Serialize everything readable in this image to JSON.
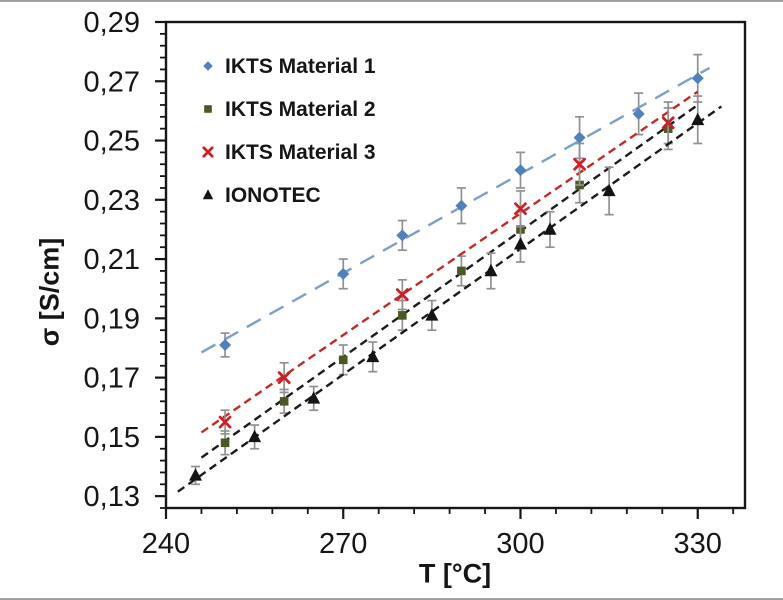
{
  "figure": {
    "background": "#ffffff",
    "frame_color": "#161616",
    "hairline_color": "#a0a0a0"
  },
  "chart_data": {
    "type": "scatter",
    "title": "",
    "xlabel": "T [°C]",
    "ylabel": "σ [S/cm]",
    "xlim": [
      240,
      338
    ],
    "ylim": [
      0.126,
      0.29
    ],
    "grid": false,
    "legend_position": "top-left-inside",
    "x_major_ticks": [
      240,
      270,
      300,
      330
    ],
    "x_major_tick_labels": [
      "240",
      "270",
      "300",
      "330"
    ],
    "x_minor_step": 6,
    "y_major_ticks": [
      0.13,
      0.15,
      0.17,
      0.19,
      0.21,
      0.23,
      0.25,
      0.27,
      0.29
    ],
    "y_major_tick_labels": [
      "0,13",
      "0,15",
      "0,17",
      "0,19",
      "0,21",
      "0,23",
      "0,25",
      "0,27",
      "0,29"
    ],
    "y_minor_step": 0.004,
    "decimal_separator": ",",
    "errorbar_color": "#919191",
    "series": [
      {
        "name": "IKTS Material 1",
        "marker": "diamond",
        "marker_color": "#4f81bd",
        "line_color": "#7da0c9",
        "line_dash": "long",
        "x": [
          250,
          270,
          280,
          290,
          300,
          310,
          320,
          330
        ],
        "y": [
          0.181,
          0.205,
          0.218,
          0.228,
          0.24,
          0.251,
          0.259,
          0.271
        ],
        "yerr": [
          0.004,
          0.005,
          0.005,
          0.006,
          0.006,
          0.007,
          0.007,
          0.008
        ],
        "trend": {
          "x1": 246,
          "y1": 0.1785,
          "x2": 332,
          "y2": 0.2745
        }
      },
      {
        "name": "IKTS Material 2",
        "marker": "square",
        "marker_color": "#4a5a22",
        "line_color": "#1c1c1c",
        "line_dash": "short",
        "x": [
          250,
          260,
          270,
          280,
          290,
          300,
          310,
          325
        ],
        "y": [
          0.148,
          0.162,
          0.176,
          0.191,
          0.206,
          0.22,
          0.235,
          0.254
        ],
        "yerr": [
          0.004,
          0.004,
          0.005,
          0.005,
          0.005,
          0.006,
          0.006,
          0.007
        ],
        "trend": {
          "x1": 246,
          "y1": 0.143,
          "x2": 330,
          "y2": 0.262
        }
      },
      {
        "name": "IKTS Material 3",
        "marker": "x",
        "marker_color": "#cb2026",
        "line_color": "#c22a28",
        "line_dash": "short",
        "x": [
          250,
          260,
          280,
          300,
          310,
          325
        ],
        "y": [
          0.155,
          0.17,
          0.198,
          0.227,
          0.242,
          0.256
        ],
        "yerr": [
          0.004,
          0.005,
          0.005,
          0.006,
          0.007,
          0.007
        ],
        "trend": {
          "x1": 246,
          "y1": 0.1515,
          "x2": 330,
          "y2": 0.2665
        }
      },
      {
        "name": "IONOTEC",
        "marker": "triangle",
        "marker_color": "#141414",
        "line_color": "#1c1c1c",
        "line_dash": "short",
        "x": [
          245,
          255,
          265,
          275,
          285,
          295,
          300,
          305,
          315,
          330
        ],
        "y": [
          0.137,
          0.15,
          0.163,
          0.177,
          0.191,
          0.206,
          0.215,
          0.22,
          0.233,
          0.257
        ],
        "yerr": [
          0.003,
          0.004,
          0.004,
          0.005,
          0.005,
          0.006,
          0.006,
          0.006,
          0.008,
          0.008
        ],
        "trend": {
          "x1": 242,
          "y1": 0.1315,
          "x2": 334,
          "y2": 0.2615
        }
      }
    ]
  }
}
